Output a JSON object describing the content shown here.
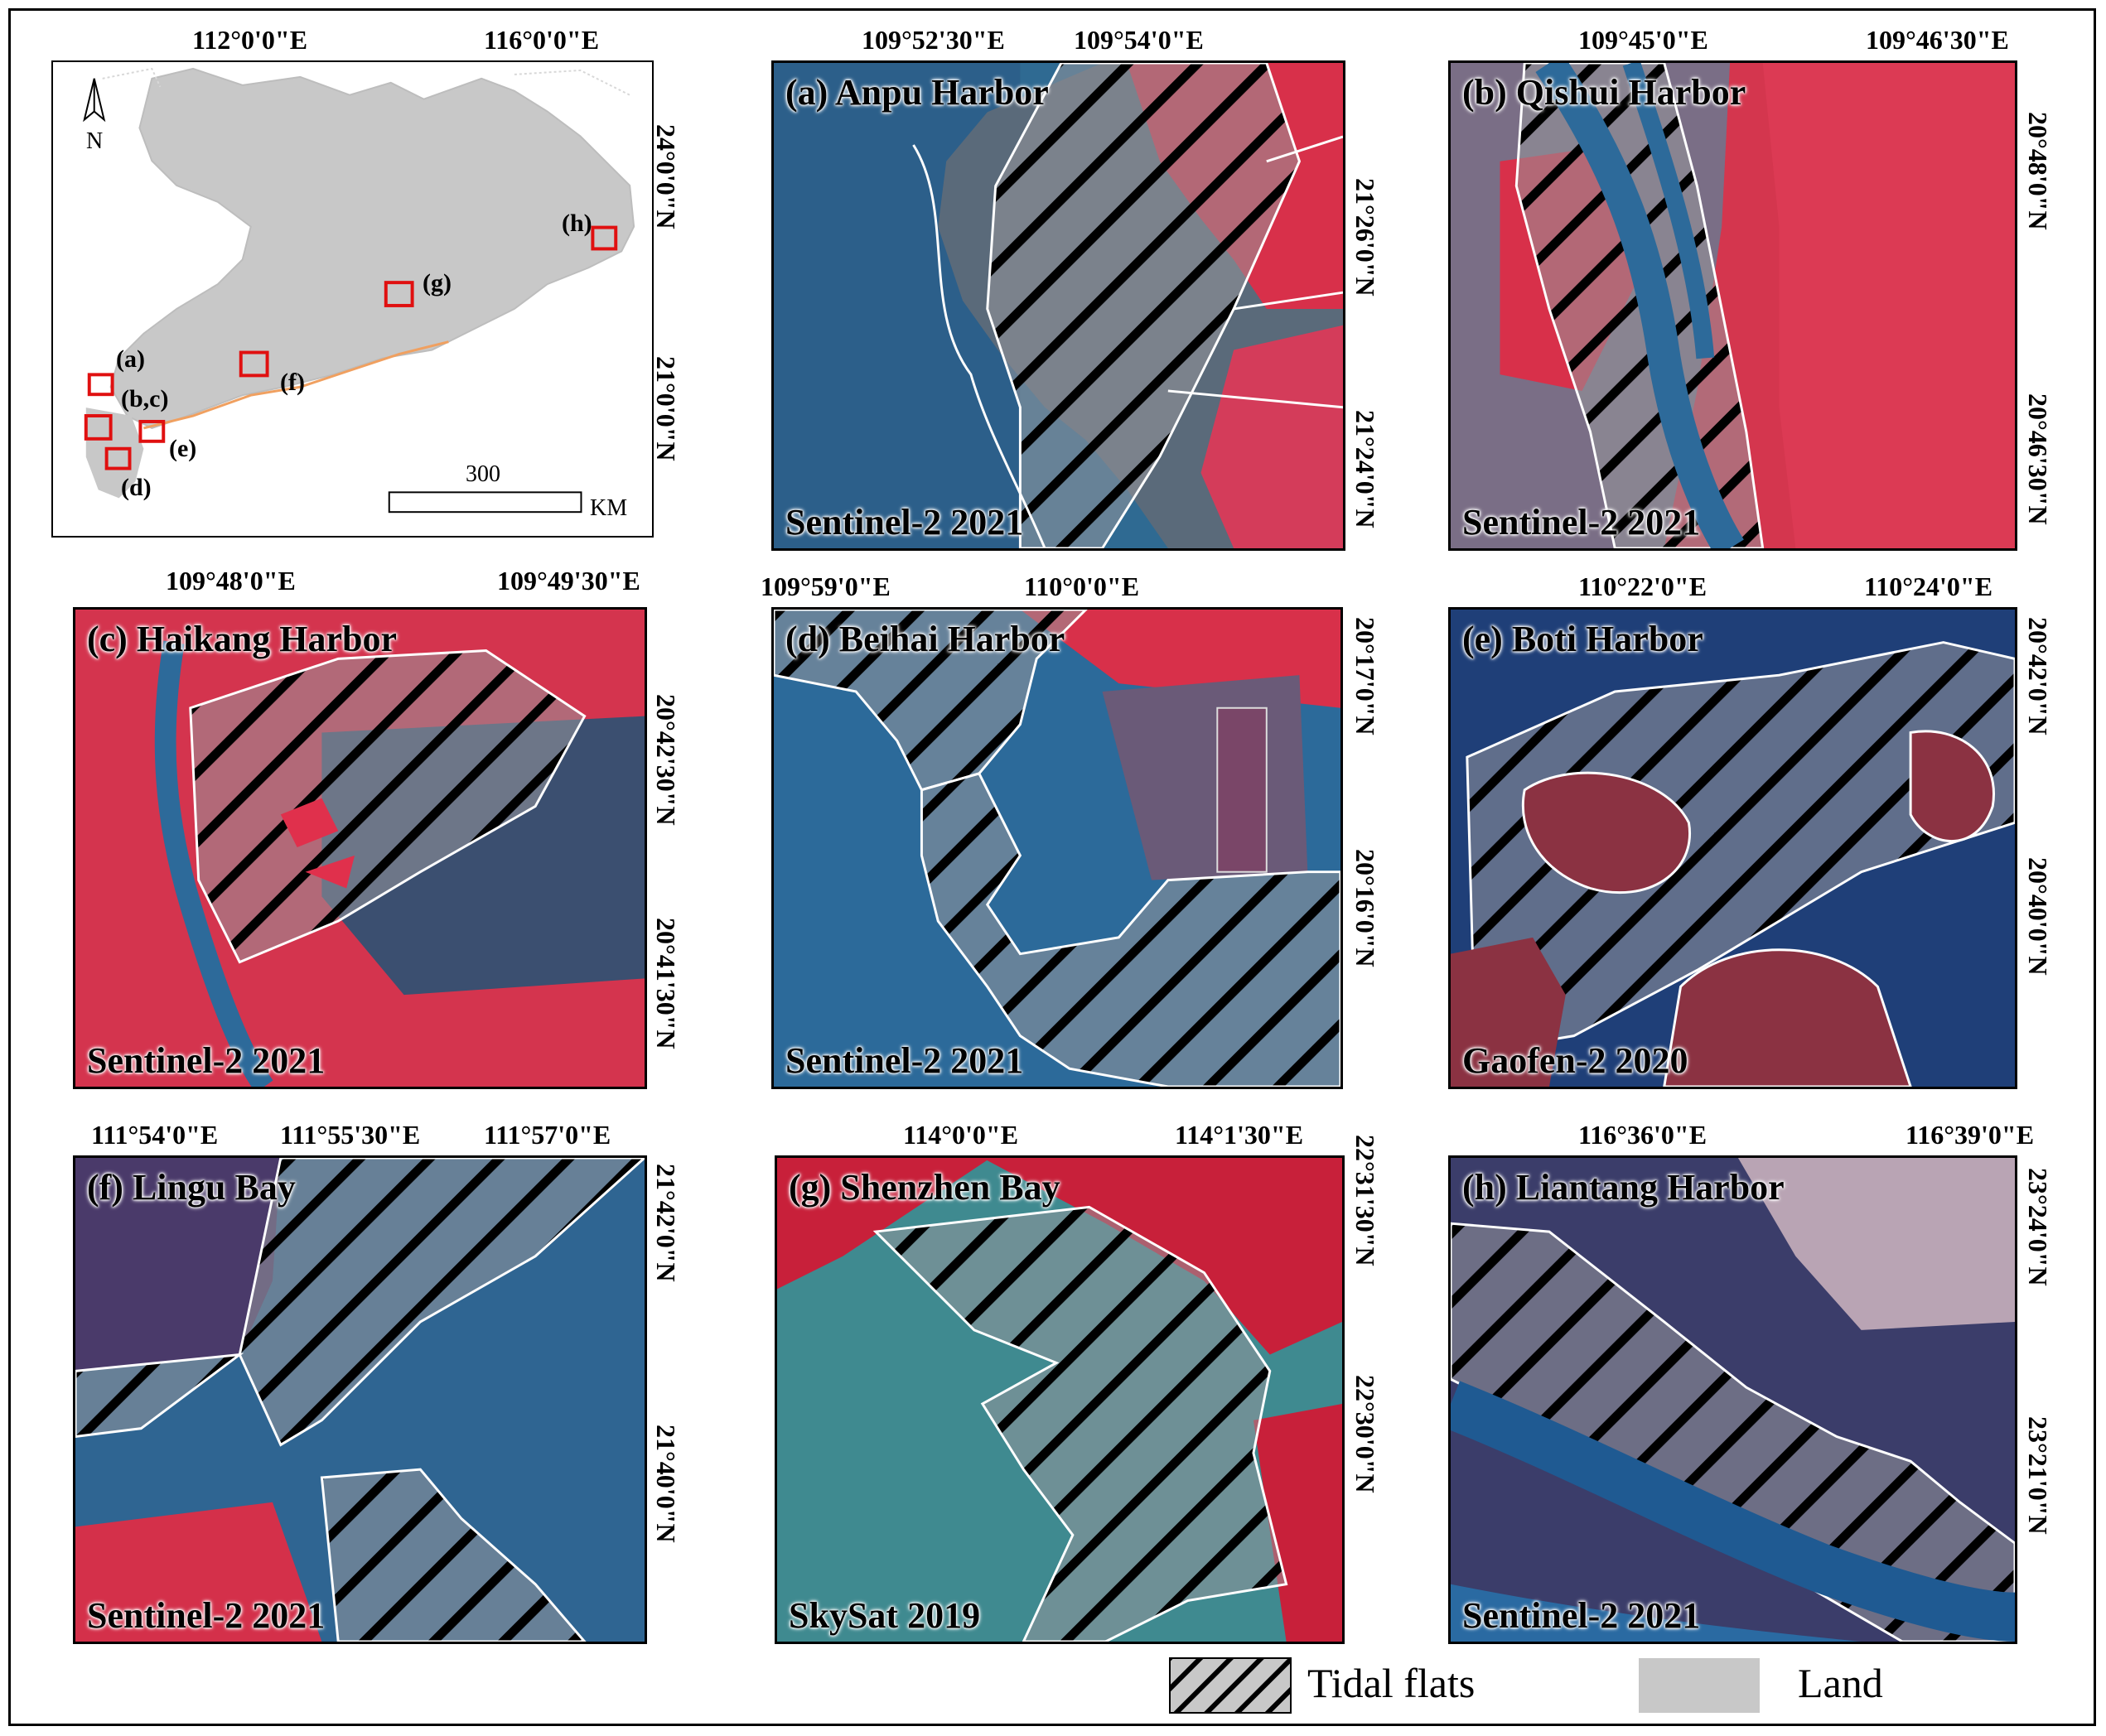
{
  "overview": {
    "top_coords": [
      "112°0'0\"E",
      "116°0'0\"E"
    ],
    "right_coords": [
      "24°0'0\"N",
      "21°0'0\"N"
    ],
    "north_label": "N",
    "scale_number": "300",
    "scale_unit": "KM",
    "site_labels": [
      "(a)",
      "(b,c)",
      "(d)",
      "(e)",
      "(f)",
      "(g)",
      "(h)"
    ]
  },
  "panels": [
    {
      "title": "(a) Anpu Harbor",
      "sensor": "Sentinel-2 2021",
      "top_coords": [
        "109°52'30\"E",
        "109°54'0\"E"
      ],
      "right_coords": [
        "21°26'0\"N",
        "21°24'0\"N"
      ]
    },
    {
      "title": "(b) Qishui Harbor",
      "sensor": "Sentinel-2 2021",
      "top_coords": [
        "109°45'0\"E",
        "109°46'30\"E"
      ],
      "right_coords": [
        "20°48'0\"N",
        "20°46'30\"N"
      ]
    },
    {
      "title": "(c)  Haikang Harbor",
      "sensor": "Sentinel-2 2021",
      "top_coords": [
        "109°48'0\"E",
        "109°49'30\"E"
      ],
      "right_coords": [
        "20°42'30\"N",
        "20°41'30\"N"
      ]
    },
    {
      "title": "(d) Beihai Harbor",
      "sensor": "Sentinel-2 2021",
      "top_coords": [
        "109°59'0\"E",
        "110°0'0\"E"
      ],
      "right_coords": [
        "20°17'0\"N",
        "20°16'0\"N"
      ]
    },
    {
      "title": "(e) Boti Harbor",
      "sensor": "Gaofen-2 2020",
      "top_coords": [
        "110°22'0\"E",
        "110°24'0\"E"
      ],
      "right_coords": [
        "20°42'0\"N",
        "20°40'0\"N"
      ]
    },
    {
      "title": "(f)  Lingu Bay",
      "sensor": "Sentinel-2 2021",
      "top_coords": [
        "111°54'0\"E",
        "111°55'30\"E",
        "111°57'0\"E"
      ],
      "right_coords": [
        "21°42'0\"N",
        "21°40'0\"N"
      ]
    },
    {
      "title": "(g) Shenzhen Bay",
      "sensor": "SkySat 2019",
      "top_coords": [
        "114°0'0\"E",
        "114°1'30\"E"
      ],
      "right_coords": [
        "22°31'30\"N",
        "22°30'0\"N"
      ]
    },
    {
      "title": "(h) Liantang Harbor",
      "sensor": "Sentinel-2 2021",
      "top_coords": [
        "116°36'0\"E",
        "116°39'0\"E"
      ],
      "right_coords": [
        "23°24'0\"N",
        "23°21'0\"N"
      ]
    }
  ],
  "legend": {
    "items": [
      {
        "label": "Tidal flats",
        "swatch": "hatched"
      },
      {
        "label": "Land",
        "swatch": "#c8c8c8"
      }
    ]
  },
  "colors": {
    "water": "#2d5a86",
    "vegetation_red": "#d8304a",
    "tidal_flat": "#8a8a8c",
    "land_gray": "#c8c8c8",
    "site_box": "#e01010"
  }
}
